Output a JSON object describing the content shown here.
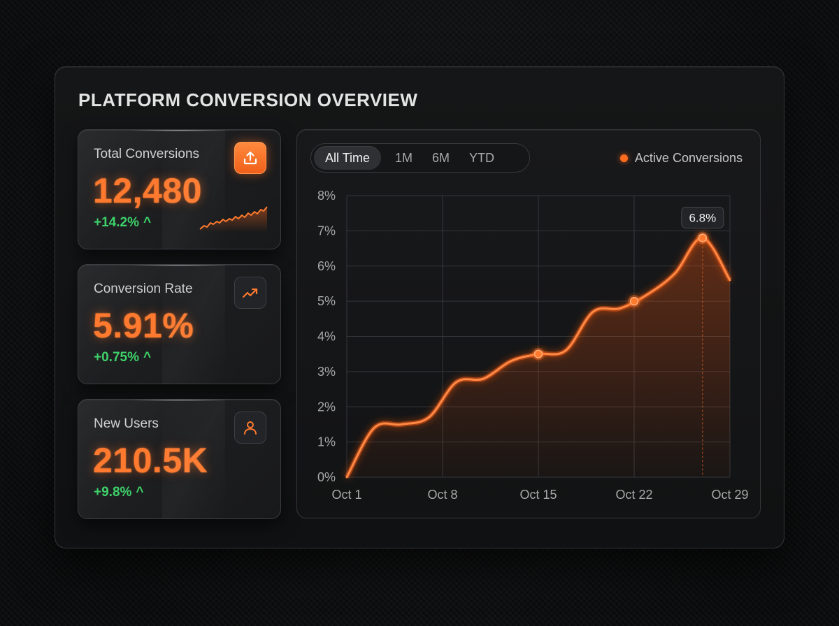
{
  "header": {
    "title": "PLATFORM CONVERSION OVERVIEW"
  },
  "cards": [
    {
      "label": "Total Conversions",
      "value": "12,480",
      "delta": "+14.2%",
      "icon": "upload-icon"
    },
    {
      "label": "Conversion Rate",
      "value": "5.91%",
      "delta": "+0.75%",
      "icon": "trend-up-icon"
    },
    {
      "label": "New Users",
      "value": "210.5K",
      "delta": "+9.8%",
      "icon": "user-icon"
    }
  ],
  "colors": {
    "accent": "#ff7a2e",
    "positive": "#3ed26a"
  },
  "range_tabs": {
    "items": [
      "All Time",
      "1M",
      "6M",
      "YTD"
    ],
    "selected": "All Time"
  },
  "chart_data": {
    "type": "line",
    "legend": {
      "position": "top-right",
      "entries": [
        "Active Conversions"
      ]
    },
    "x_ticks": [
      "Oct 1",
      "Oct 8",
      "Oct 15",
      "Oct 22",
      "Oct 29"
    ],
    "y_ticks": [
      "0%",
      "1%",
      "2%",
      "3%",
      "4%",
      "5%",
      "6%",
      "7%",
      "8%"
    ],
    "ylim": [
      0,
      8
    ],
    "xlim": [
      1,
      29
    ],
    "grid": true,
    "series": [
      {
        "name": "Active Conversions",
        "x": [
          1,
          3,
          5,
          7,
          9,
          11,
          13,
          15,
          17,
          19,
          21,
          23,
          25,
          27,
          29
        ],
        "y": [
          0,
          1.4,
          1.5,
          1.7,
          2.7,
          2.8,
          3.3,
          3.5,
          3.6,
          4.7,
          4.8,
          5.2,
          5.8,
          6.8,
          5.6
        ],
        "highlight_x": [
          15,
          22,
          27
        ]
      }
    ],
    "annotation": {
      "x": 27,
      "y": 6.8,
      "label": "6.8%"
    }
  }
}
